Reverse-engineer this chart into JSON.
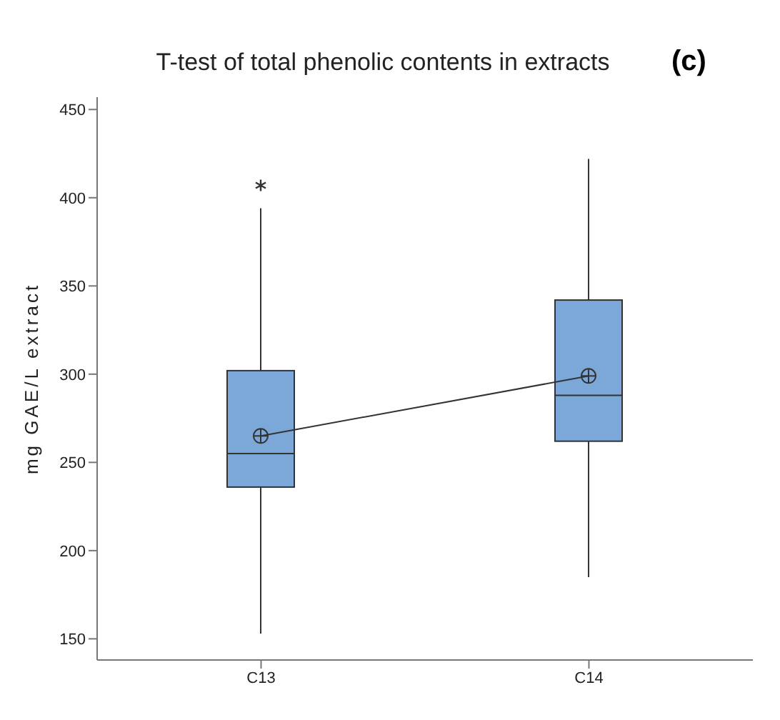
{
  "chart_data": {
    "type": "box",
    "title": "T-test of total phenolic contents in extracts",
    "ylabel": "mg GAE/L extract",
    "annotations": [
      "(c)"
    ],
    "categories": [
      "C13",
      "C14"
    ],
    "color": "#7ba7d9",
    "boxes": [
      {
        "low": 153,
        "q1": 236,
        "median": 255,
        "q3": 302,
        "high": 394,
        "mean": 265,
        "outliers": [
          407
        ]
      },
      {
        "low": 185,
        "q1": 262,
        "median": 288,
        "q3": 342,
        "high": 422,
        "mean": 299
      }
    ],
    "series": [
      {
        "type": "line",
        "x": [
          "C13",
          "C14"
        ],
        "values": [
          265,
          299
        ],
        "color": "#333333"
      }
    ],
    "ylim": [
      138,
      457
    ],
    "yticks": [
      150,
      200,
      250,
      300,
      350,
      400,
      450
    ],
    "grid": false
  }
}
